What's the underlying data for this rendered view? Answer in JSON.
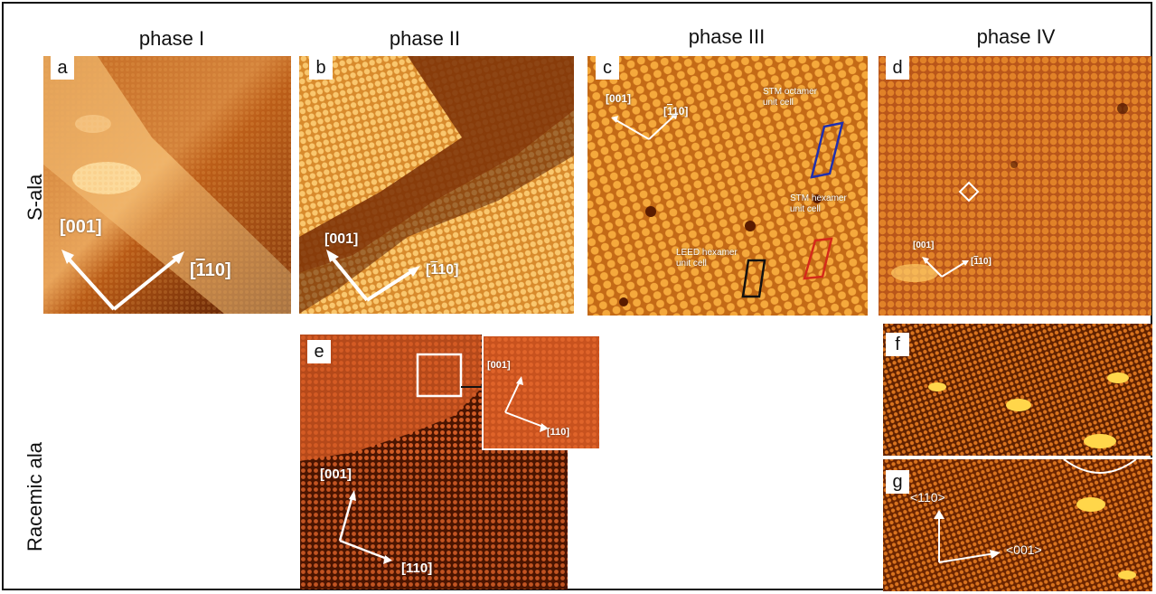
{
  "columns": [
    "phase I",
    "phase II",
    "phase III",
    "phase IV"
  ],
  "rows": [
    "S-ala",
    "Racemic  ala"
  ],
  "panels": {
    "a": {
      "label": "a",
      "dir1": "[001]",
      "dir2_bar": "1",
      "dir2_rest": "10]",
      "dir2_open": "["
    },
    "b": {
      "label": "b",
      "dir1": "[001]",
      "dir2_open": "[",
      "dir2_bar": "1",
      "dir2_rest": "10]"
    },
    "c": {
      "label": "c",
      "dir1": "[001]",
      "dir2_open": "[",
      "dir2_bar": "1",
      "dir2_rest": "10]",
      "stm_octamer": "STM octamer unit cell",
      "stm_hexamer": "STM hexamer unit cell",
      "leed_hexamer": "LEED hexamer unit cell"
    },
    "d": {
      "label": "d",
      "dir1": "[001]",
      "dir2_open": "[",
      "dir2_bar": "1",
      "dir2_rest": "10]"
    },
    "e": {
      "label": "e",
      "dir1": "[001]",
      "dir2": "[110]",
      "inset_dir1": "[001]",
      "inset_dir2": "[110]"
    },
    "f": {
      "label": "f"
    },
    "g": {
      "label": "g",
      "dir1": "<110>",
      "dir2": "<001>"
    }
  },
  "colors": {
    "stm_dark": "#5a1c00",
    "stm_mid": "#c8620f",
    "stm_light": "#f6b64a",
    "octamer_box": "#1f2fae",
    "hexamer_box": "#d42a1a",
    "leed_box": "#111111"
  }
}
